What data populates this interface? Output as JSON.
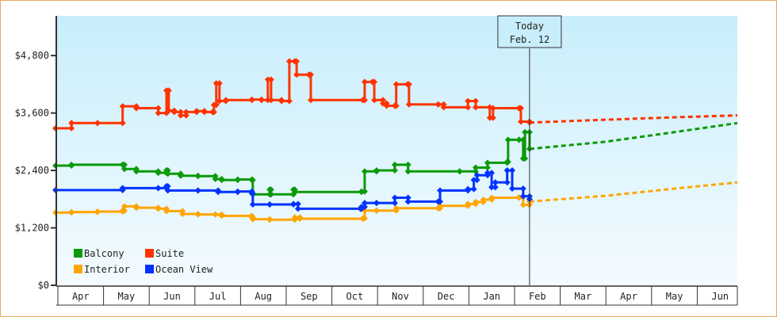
{
  "chart_data": {
    "type": "line",
    "title": "",
    "xlabel": "",
    "ylabel": "",
    "x_unit": "months since Apr 1",
    "xlim": [
      -0.05,
      14.88
    ],
    "ylim": [
      0,
      5630
    ],
    "y_ticks": [
      0,
      1200,
      2400,
      3600,
      4800
    ],
    "y_tick_labels": [
      "$0",
      "$1,200",
      "$2,400",
      "$3,600",
      "$4,800"
    ],
    "x_tick_labels": [
      "Apr",
      "May",
      "Jun",
      "Jul",
      "Aug",
      "Sep",
      "Oct",
      "Nov",
      "Dec",
      "Jan",
      "Feb",
      "Mar",
      "Apr",
      "May",
      "Jun"
    ],
    "today": {
      "x": 10.33,
      "label_line1": "Today",
      "label_line2": "Feb. 12"
    },
    "legend_placement": "bottom-left",
    "series": [
      {
        "name": "Balcony",
        "color": "#0a9a0a",
        "values": [
          [
            -0.05,
            2500
          ],
          [
            0.3,
            2520
          ],
          [
            1.42,
            2520
          ],
          [
            1.46,
            2430
          ],
          [
            1.72,
            2380
          ],
          [
            2.2,
            2350
          ],
          [
            2.38,
            2400
          ],
          [
            2.41,
            2330
          ],
          [
            2.69,
            2290
          ],
          [
            3.07,
            2280
          ],
          [
            3.45,
            2220
          ],
          [
            3.59,
            2200
          ],
          [
            3.94,
            2210
          ],
          [
            4.25,
            2200
          ],
          [
            4.27,
            1900
          ],
          [
            4.64,
            2000
          ],
          [
            4.67,
            1900
          ],
          [
            5.16,
            2000
          ],
          [
            5.19,
            1950
          ],
          [
            6.65,
            1960
          ],
          [
            6.72,
            2380
          ],
          [
            6.98,
            2400
          ],
          [
            7.38,
            2520
          ],
          [
            7.67,
            2380
          ],
          [
            8.8,
            2380
          ],
          [
            9.15,
            2460
          ],
          [
            9.41,
            2560
          ],
          [
            9.84,
            2580
          ],
          [
            9.86,
            3040
          ],
          [
            10.1,
            3040
          ],
          [
            10.19,
            2650
          ],
          [
            10.23,
            3200
          ],
          [
            10.33,
            2850
          ]
        ],
        "forecast": [
          [
            10.33,
            2850
          ],
          [
            12,
            3000
          ],
          [
            13.5,
            3200
          ],
          [
            14.88,
            3390
          ]
        ]
      },
      {
        "name": "Suite",
        "color": "#ff3300",
        "values": [
          [
            -0.05,
            3280
          ],
          [
            0.3,
            3390
          ],
          [
            0.87,
            3390
          ],
          [
            1.42,
            3740
          ],
          [
            1.72,
            3700
          ],
          [
            2.2,
            3600
          ],
          [
            2.38,
            4070
          ],
          [
            2.43,
            3650
          ],
          [
            2.55,
            3620
          ],
          [
            2.69,
            3550
          ],
          [
            2.81,
            3620
          ],
          [
            3.04,
            3640
          ],
          [
            3.21,
            3620
          ],
          [
            3.39,
            3620
          ],
          [
            3.42,
            3770
          ],
          [
            3.47,
            4220
          ],
          [
            3.54,
            3850
          ],
          [
            3.68,
            3870
          ],
          [
            4.25,
            3880
          ],
          [
            4.46,
            3870
          ],
          [
            4.6,
            4300
          ],
          [
            4.67,
            3870
          ],
          [
            4.9,
            3850
          ],
          [
            5.07,
            4680
          ],
          [
            5.19,
            4680
          ],
          [
            5.23,
            4400
          ],
          [
            5.5,
            4400
          ],
          [
            5.54,
            3870
          ],
          [
            6.68,
            3870
          ],
          [
            6.72,
            4250
          ],
          [
            6.89,
            4250
          ],
          [
            6.93,
            3870
          ],
          [
            7.12,
            3800
          ],
          [
            7.2,
            3750
          ],
          [
            7.38,
            3750
          ],
          [
            7.41,
            4200
          ],
          [
            7.66,
            4200
          ],
          [
            7.69,
            3780
          ],
          [
            8.33,
            3780
          ],
          [
            8.45,
            3720
          ],
          [
            8.98,
            3850
          ],
          [
            9.15,
            3720
          ],
          [
            9.46,
            3500
          ],
          [
            9.53,
            3700
          ],
          [
            10.1,
            3700
          ],
          [
            10.14,
            3420
          ],
          [
            10.33,
            3400
          ]
        ],
        "forecast": [
          [
            10.33,
            3400
          ],
          [
            12,
            3460
          ],
          [
            13.5,
            3510
          ],
          [
            14.88,
            3550
          ]
        ]
      },
      {
        "name": "Interior",
        "color": "#ffa500",
        "values": [
          [
            -0.05,
            1520
          ],
          [
            0.3,
            1530
          ],
          [
            0.87,
            1540
          ],
          [
            1.42,
            1560
          ],
          [
            1.46,
            1650
          ],
          [
            1.72,
            1620
          ],
          [
            2.2,
            1600
          ],
          [
            2.38,
            1550
          ],
          [
            2.73,
            1490
          ],
          [
            3.07,
            1480
          ],
          [
            3.45,
            1480
          ],
          [
            3.59,
            1450
          ],
          [
            4.25,
            1420
          ],
          [
            4.27,
            1380
          ],
          [
            4.64,
            1370
          ],
          [
            5.19,
            1420
          ],
          [
            5.3,
            1390
          ],
          [
            6.68,
            1400
          ],
          [
            6.72,
            1560
          ],
          [
            6.98,
            1560
          ],
          [
            7.41,
            1610
          ],
          [
            8.33,
            1610
          ],
          [
            8.37,
            1660
          ],
          [
            8.98,
            1700
          ],
          [
            9.15,
            1740
          ],
          [
            9.32,
            1790
          ],
          [
            9.5,
            1830
          ],
          [
            10.1,
            1840
          ],
          [
            10.19,
            1680
          ],
          [
            10.33,
            1750
          ]
        ],
        "forecast": [
          [
            10.33,
            1750
          ],
          [
            12,
            1870
          ],
          [
            13.5,
            2020
          ],
          [
            14.88,
            2150
          ]
        ]
      },
      {
        "name": "Ocean View",
        "color": "#0033ff",
        "values": [
          [
            -0.05,
            1990
          ],
          [
            1.42,
            2030
          ],
          [
            2.2,
            2030
          ],
          [
            2.38,
            2070
          ],
          [
            2.41,
            1980
          ],
          [
            3.07,
            1980
          ],
          [
            3.51,
            1950
          ],
          [
            3.94,
            1960
          ],
          [
            4.25,
            1920
          ],
          [
            4.27,
            1690
          ],
          [
            4.64,
            1690
          ],
          [
            5.16,
            1700
          ],
          [
            5.26,
            1600
          ],
          [
            6.63,
            1600
          ],
          [
            6.65,
            1640
          ],
          [
            6.72,
            1720
          ],
          [
            6.98,
            1720
          ],
          [
            7.38,
            1830
          ],
          [
            7.67,
            1750
          ],
          [
            8.33,
            1750
          ],
          [
            8.37,
            1980
          ],
          [
            8.98,
            2010
          ],
          [
            9.11,
            2200
          ],
          [
            9.18,
            2300
          ],
          [
            9.41,
            2350
          ],
          [
            9.5,
            2050
          ],
          [
            9.58,
            2150
          ],
          [
            9.84,
            2400
          ],
          [
            9.95,
            2020
          ],
          [
            10.19,
            1860
          ],
          [
            10.33,
            1800
          ]
        ],
        "forecast": []
      }
    ]
  }
}
